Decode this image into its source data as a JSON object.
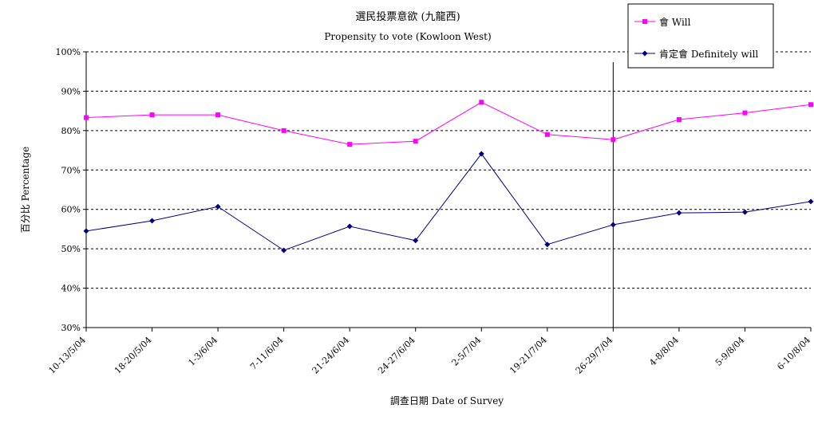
{
  "chart_data": {
    "type": "line",
    "title": "選民投票意欲 (九龍西)",
    "subtitle": "Propensity to vote (Kowloon West)",
    "xlabel": "調查日期 Date of Survey",
    "ylabel": "百分比 Percentage",
    "categories": [
      "10-13/5/04",
      "18-20/5/04",
      "1-3/6/04",
      "7-11/6/04",
      "21-24/6/04",
      "24-27/6/04",
      "2-5/7/04",
      "19-21/7/04",
      "26-29/7/04",
      "4-8/8/04",
      "5-9/8/04",
      "6-10/8/04"
    ],
    "ylim": [
      30,
      100
    ],
    "yticks": [
      "30%",
      "40%",
      "50%",
      "60%",
      "70%",
      "80%",
      "90%",
      "100%"
    ],
    "grid": true,
    "legend_position": "top-right",
    "series": [
      {
        "name": "會 Will",
        "color": "#ff00ff",
        "marker": "square",
        "values": [
          83.3,
          84,
          84,
          80,
          76.5,
          77.3,
          87.2,
          79,
          77.7,
          82.8,
          84.5,
          86.6
        ]
      },
      {
        "name": "肯定會 Definitely will",
        "color": "#000080",
        "marker": "diamond",
        "values": [
          54.5,
          57.1,
          60.7,
          49.6,
          55.7,
          52.1,
          74.1,
          51.1,
          56.1,
          59.1,
          59.3,
          62.0
        ]
      }
    ],
    "annotations": [
      {
        "type": "vertical-line",
        "after_category": "26-29/7/04"
      }
    ]
  }
}
